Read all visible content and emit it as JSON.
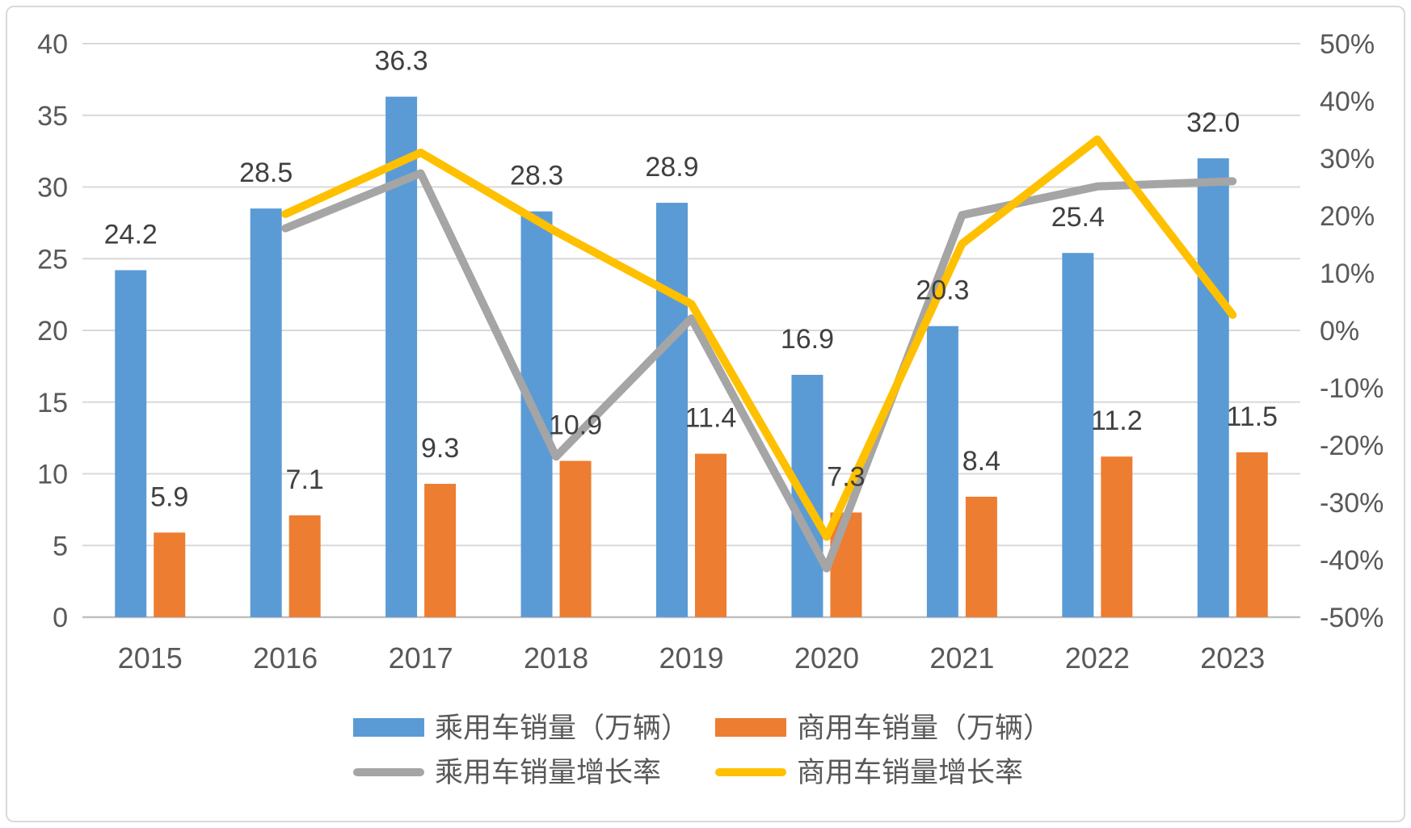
{
  "chart_data": {
    "type": "combo-bar-line",
    "categories": [
      "2015",
      "2016",
      "2017",
      "2018",
      "2019",
      "2020",
      "2021",
      "2022",
      "2023"
    ],
    "series": [
      {
        "name": "乘用车销量（万辆）",
        "type": "bar",
        "color": "#5B9BD5",
        "axis": "left",
        "values": [
          24.2,
          28.5,
          36.3,
          28.3,
          28.9,
          16.9,
          20.3,
          25.4,
          32.0
        ]
      },
      {
        "name": "商用车销量（万辆）",
        "type": "bar",
        "color": "#ED7D31",
        "axis": "left",
        "values": [
          5.9,
          7.1,
          9.3,
          10.9,
          11.4,
          7.3,
          8.4,
          11.2,
          11.5
        ]
      },
      {
        "name": "乘用车销量增长率",
        "type": "line",
        "color": "#A5A5A5",
        "axis": "right",
        "values": [
          null,
          17.8,
          27.4,
          -22.0,
          2.1,
          -41.5,
          20.1,
          25.1,
          26.0
        ]
      },
      {
        "name": "商用车销量增长率",
        "type": "line",
        "color": "#FFC000",
        "axis": "right",
        "values": [
          null,
          20.3,
          31.0,
          17.2,
          4.6,
          -36.0,
          15.1,
          33.3,
          2.7
        ]
      }
    ],
    "left_axis": {
      "min": 0,
      "max": 40,
      "step": 5,
      "tick_labels": [
        "0",
        "5",
        "10",
        "15",
        "20",
        "25",
        "30",
        "35",
        "40"
      ]
    },
    "right_axis": {
      "min": -50,
      "max": 50,
      "step": 10,
      "tick_labels": [
        "-50%",
        "-40%",
        "-30%",
        "-20%",
        "-10%",
        "0%",
        "10%",
        "20%",
        "30%",
        "40%",
        "50%"
      ]
    },
    "bar_data_labels_visible": true,
    "grid": "horizontal",
    "legend_position": "bottom",
    "colors": {
      "grid": "#D9D9D9",
      "zero_line": "#BFBFBF",
      "axis_text": "#595959",
      "data_label": "#404040",
      "background": "#FFFFFF",
      "border": "#D9D9D9"
    }
  }
}
